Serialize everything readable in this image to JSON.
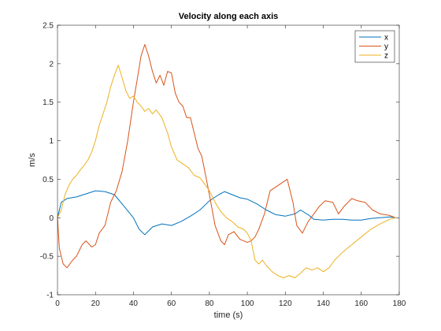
{
  "chart_data": {
    "type": "line",
    "title": "Velocity along each axis",
    "xlabel": "time (s)",
    "ylabel": "m/s",
    "xlim": [
      0,
      180
    ],
    "ylim": [
      -1,
      2.5
    ],
    "xticks": [
      0,
      20,
      40,
      60,
      80,
      100,
      120,
      140,
      160,
      180
    ],
    "yticks": [
      -1,
      -0.5,
      0,
      0.5,
      1,
      1.5,
      2,
      2.5
    ],
    "xtick_labels": [
      "0",
      "20",
      "40",
      "60",
      "80",
      "100",
      "120",
      "140",
      "160",
      "180"
    ],
    "ytick_labels": [
      "-1",
      "-0.5",
      "0",
      "0.5",
      "1",
      "1.5",
      "2",
      "2.5"
    ],
    "grid": false,
    "legend_position": "top-right",
    "series": [
      {
        "name": "x",
        "color": "#0072BD",
        "x": [
          0,
          2,
          5,
          10,
          15,
          20,
          25,
          30,
          35,
          40,
          43,
          46,
          50,
          55,
          60,
          65,
          70,
          75,
          80,
          85,
          88,
          92,
          96,
          100,
          105,
          110,
          115,
          120,
          125,
          128,
          132,
          135,
          140,
          145,
          150,
          155,
          160,
          165,
          170,
          175,
          178
        ],
        "y": [
          0,
          0.2,
          0.25,
          0.27,
          0.31,
          0.35,
          0.34,
          0.3,
          0.15,
          0,
          -0.15,
          -0.22,
          -0.12,
          -0.08,
          -0.1,
          -0.05,
          0.02,
          0.1,
          0.22,
          0.3,
          0.34,
          0.3,
          0.26,
          0.24,
          0.18,
          0.1,
          0.04,
          0.02,
          0.05,
          0.1,
          0.04,
          -0.02,
          -0.03,
          -0.02,
          -0.02,
          -0.03,
          -0.03,
          -0.01,
          0,
          0.01,
          0
        ]
      },
      {
        "name": "y",
        "color": "#D95319",
        "x": [
          0,
          1,
          3,
          5,
          8,
          10,
          13,
          15,
          18,
          20,
          22,
          25,
          28,
          31,
          34,
          37,
          40,
          42,
          44,
          46,
          48,
          50,
          52,
          54,
          56,
          58,
          60,
          62,
          64,
          66,
          68,
          70,
          72,
          74,
          76,
          78,
          80,
          83,
          86,
          88,
          90,
          93,
          96,
          98,
          100,
          102,
          104,
          106,
          109,
          112,
          115,
          118,
          121,
          124,
          126,
          129,
          132,
          135,
          138,
          141,
          145,
          148,
          151,
          155,
          158,
          162,
          166,
          170,
          175,
          178
        ],
        "y": [
          0,
          -0.4,
          -0.6,
          -0.65,
          -0.55,
          -0.5,
          -0.35,
          -0.3,
          -0.38,
          -0.35,
          -0.2,
          -0.1,
          0.2,
          0.35,
          0.6,
          1.0,
          1.5,
          1.8,
          2.1,
          2.25,
          2.1,
          1.9,
          1.75,
          1.85,
          1.72,
          1.9,
          1.88,
          1.62,
          1.5,
          1.45,
          1.3,
          1.3,
          1.1,
          0.9,
          0.8,
          0.55,
          0.3,
          -0.1,
          -0.3,
          -0.35,
          -0.22,
          -0.18,
          -0.28,
          -0.3,
          -0.32,
          -0.3,
          -0.25,
          -0.15,
          0.05,
          0.35,
          0.4,
          0.45,
          0.5,
          0.2,
          -0.1,
          -0.2,
          -0.05,
          0.05,
          0.15,
          0.22,
          0.2,
          0.05,
          0.15,
          0.25,
          0.22,
          0.2,
          0.1,
          0.05,
          0.03,
          0
        ]
      },
      {
        "name": "z",
        "color": "#EDB120",
        "x": [
          0,
          2,
          4,
          6,
          8,
          10,
          12,
          14,
          16,
          18,
          20,
          22,
          24,
          26,
          28,
          30,
          32,
          34,
          36,
          38,
          40,
          42,
          44,
          46,
          48,
          50,
          52,
          55,
          58,
          60,
          63,
          66,
          69,
          72,
          75,
          78,
          80,
          83,
          86,
          89,
          92,
          95,
          98,
          100,
          102,
          104,
          106,
          108,
          110,
          113,
          116,
          119,
          122,
          125,
          128,
          131,
          134,
          137,
          140,
          143,
          146,
          150,
          155,
          160,
          165,
          170,
          175,
          178
        ],
        "y": [
          0,
          0.1,
          0.3,
          0.42,
          0.5,
          0.55,
          0.62,
          0.68,
          0.75,
          0.85,
          1.0,
          1.2,
          1.35,
          1.5,
          1.7,
          1.85,
          1.98,
          1.82,
          1.65,
          1.55,
          1.58,
          1.5,
          1.45,
          1.38,
          1.42,
          1.35,
          1.4,
          1.3,
          1.1,
          0.92,
          0.75,
          0.7,
          0.65,
          0.55,
          0.52,
          0.42,
          0.35,
          0.2,
          0.08,
          0,
          -0.05,
          -0.12,
          -0.15,
          -0.2,
          -0.3,
          -0.55,
          -0.6,
          -0.55,
          -0.62,
          -0.7,
          -0.75,
          -0.78,
          -0.75,
          -0.78,
          -0.72,
          -0.65,
          -0.68,
          -0.65,
          -0.7,
          -0.65,
          -0.55,
          -0.45,
          -0.35,
          -0.25,
          -0.15,
          -0.08,
          -0.02,
          0
        ]
      }
    ]
  }
}
